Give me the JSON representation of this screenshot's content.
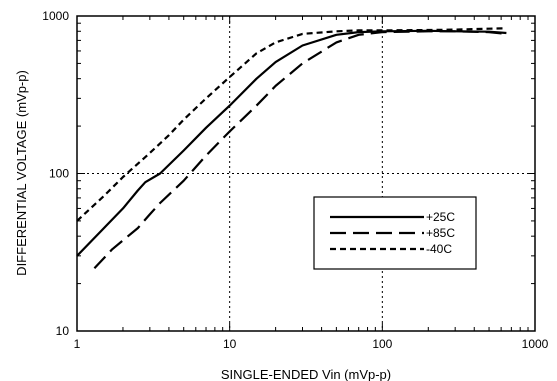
{
  "chart_data": {
    "type": "line",
    "title": "",
    "xlabel": "SINGLE-ENDED Vin (mVp-p)",
    "ylabel": "DIFFERENTIAL VOLTAGE (mVp-p)",
    "xscale": "log",
    "yscale": "log",
    "xlim": [
      1,
      1000
    ],
    "ylim": [
      10,
      1000
    ],
    "xticks": [
      1,
      10,
      100,
      1000
    ],
    "xtick_labels": [
      "1",
      "10",
      "100",
      "1000"
    ],
    "yticks": [
      10,
      100,
      1000
    ],
    "ytick_labels": [
      "10",
      "100",
      "1000"
    ],
    "grid": "dotted major gridlines",
    "legend_position": "right-center",
    "series": [
      {
        "name": "+25C",
        "style": "solid",
        "x": [
          1,
          1.5,
          2,
          2.5,
          2.8,
          3.5,
          5,
          7,
          10,
          15,
          20,
          30,
          50,
          70,
          100,
          200,
          300,
          500,
          650
        ],
        "y": [
          30,
          45,
          60,
          78,
          88,
          100,
          140,
          195,
          270,
          400,
          510,
          650,
          760,
          790,
          800,
          805,
          800,
          795,
          780
        ]
      },
      {
        "name": "+85C",
        "style": "long-dash",
        "x": [
          1.3,
          1.7,
          2.5,
          3,
          3.5,
          5,
          7,
          10,
          15,
          20,
          30,
          50,
          70,
          100,
          200,
          300,
          500,
          650
        ],
        "y": [
          25,
          33,
          45,
          55,
          65,
          90,
          130,
          185,
          270,
          360,
          500,
          680,
          760,
          790,
          800,
          800,
          790,
          770
        ]
      },
      {
        "name": "-40C",
        "style": "short-dash",
        "x": [
          1,
          1.5,
          2,
          3,
          4,
          5,
          7,
          10,
          15,
          20,
          30,
          50,
          70,
          100,
          200,
          300,
          500,
          650
        ],
        "y": [
          50,
          72,
          95,
          135,
          175,
          220,
          300,
          410,
          580,
          680,
          770,
          800,
          810,
          810,
          815,
          820,
          830,
          835
        ]
      }
    ]
  }
}
